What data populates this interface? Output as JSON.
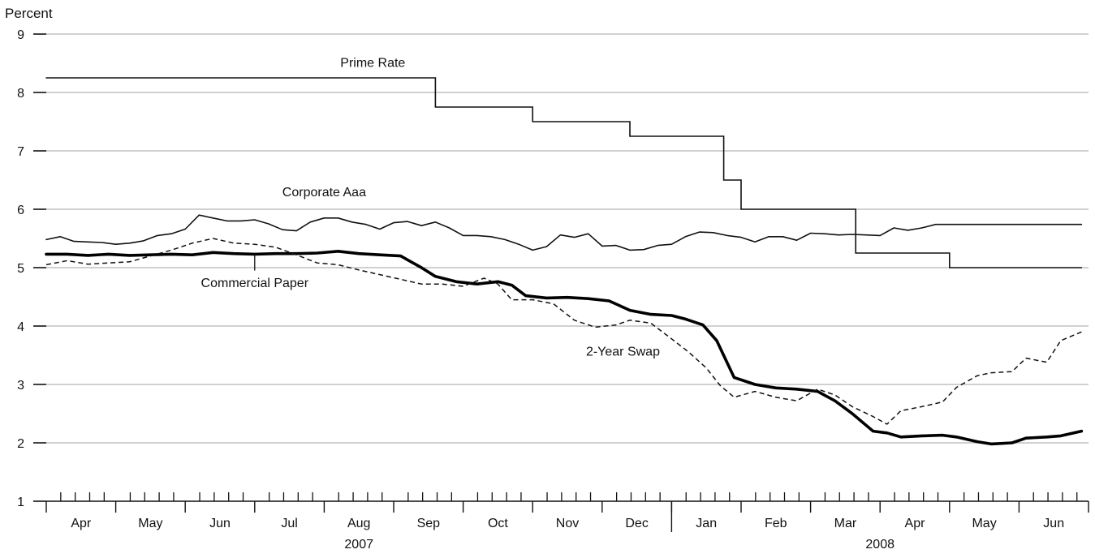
{
  "chart_data": {
    "type": "line",
    "ylabel": "Percent",
    "ylim": [
      1,
      9
    ],
    "yticks": [
      "1",
      "2",
      "3",
      "4",
      "5",
      "6",
      "7",
      "8",
      "9"
    ],
    "grid": "horizontal",
    "x_range": [
      0,
      15
    ],
    "months": [
      {
        "label": "Apr",
        "x": 0.5
      },
      {
        "label": "May",
        "x": 1.5
      },
      {
        "label": "Jun",
        "x": 2.5
      },
      {
        "label": "Jul",
        "x": 3.5
      },
      {
        "label": "Aug",
        "x": 4.5
      },
      {
        "label": "Sep",
        "x": 5.5
      },
      {
        "label": "Oct",
        "x": 6.5
      },
      {
        "label": "Nov",
        "x": 7.5
      },
      {
        "label": "Dec",
        "x": 8.5
      },
      {
        "label": "Jan",
        "x": 9.5
      },
      {
        "label": "Feb",
        "x": 10.5
      },
      {
        "label": "Mar",
        "x": 11.5
      },
      {
        "label": "Apr",
        "x": 12.5
      },
      {
        "label": "May",
        "x": 13.5
      },
      {
        "label": "Jun",
        "x": 14.5
      }
    ],
    "years": [
      {
        "label": "2007",
        "x": 4.5
      },
      {
        "label": "2008",
        "x": 12.0
      }
    ],
    "year_divider_x": 9.0,
    "series": [
      {
        "name": "Prime Rate",
        "style": "thin",
        "step": true,
        "color": "#111111",
        "points": [
          [
            0.0,
            8.25
          ],
          [
            5.6,
            8.25
          ],
          [
            5.6,
            7.75
          ],
          [
            7.0,
            7.75
          ],
          [
            7.0,
            7.5
          ],
          [
            8.4,
            7.5
          ],
          [
            8.4,
            7.25
          ],
          [
            9.75,
            7.25
          ],
          [
            9.75,
            6.5
          ],
          [
            10.0,
            6.5
          ],
          [
            10.0,
            6.0
          ],
          [
            11.65,
            6.0
          ],
          [
            11.65,
            5.25
          ],
          [
            13.0,
            5.25
          ],
          [
            13.0,
            5.0
          ],
          [
            14.9,
            5.0
          ]
        ]
      },
      {
        "name": "Corporate Aaa",
        "style": "thin",
        "color": "#111111",
        "points": [
          [
            0.0,
            5.48
          ],
          [
            0.2,
            5.53
          ],
          [
            0.4,
            5.45
          ],
          [
            0.6,
            5.44
          ],
          [
            0.8,
            5.43
          ],
          [
            1.0,
            5.4
          ],
          [
            1.2,
            5.42
          ],
          [
            1.4,
            5.46
          ],
          [
            1.6,
            5.55
          ],
          [
            1.8,
            5.58
          ],
          [
            2.0,
            5.66
          ],
          [
            2.2,
            5.9
          ],
          [
            2.4,
            5.85
          ],
          [
            2.6,
            5.8
          ],
          [
            2.8,
            5.8
          ],
          [
            3.0,
            5.82
          ],
          [
            3.2,
            5.75
          ],
          [
            3.4,
            5.65
          ],
          [
            3.6,
            5.63
          ],
          [
            3.8,
            5.78
          ],
          [
            4.0,
            5.85
          ],
          [
            4.2,
            5.85
          ],
          [
            4.4,
            5.78
          ],
          [
            4.6,
            5.74
          ],
          [
            4.8,
            5.66
          ],
          [
            5.0,
            5.77
          ],
          [
            5.2,
            5.79
          ],
          [
            5.4,
            5.72
          ],
          [
            5.6,
            5.78
          ],
          [
            5.8,
            5.68
          ],
          [
            6.0,
            5.55
          ],
          [
            6.2,
            5.55
          ],
          [
            6.4,
            5.53
          ],
          [
            6.6,
            5.48
          ],
          [
            6.8,
            5.4
          ],
          [
            7.0,
            5.3
          ],
          [
            7.2,
            5.36
          ],
          [
            7.4,
            5.56
          ],
          [
            7.6,
            5.52
          ],
          [
            7.8,
            5.58
          ],
          [
            8.0,
            5.37
          ],
          [
            8.2,
            5.38
          ],
          [
            8.4,
            5.3
          ],
          [
            8.6,
            5.31
          ],
          [
            8.8,
            5.38
          ],
          [
            9.0,
            5.4
          ],
          [
            9.2,
            5.53
          ],
          [
            9.4,
            5.61
          ],
          [
            9.6,
            5.6
          ],
          [
            9.8,
            5.55
          ],
          [
            10.0,
            5.52
          ],
          [
            10.2,
            5.44
          ],
          [
            10.4,
            5.53
          ],
          [
            10.6,
            5.53
          ],
          [
            10.8,
            5.47
          ],
          [
            11.0,
            5.59
          ],
          [
            11.2,
            5.58
          ],
          [
            11.4,
            5.56
          ],
          [
            11.6,
            5.57
          ],
          [
            11.8,
            5.56
          ],
          [
            12.0,
            5.55
          ],
          [
            12.2,
            5.68
          ],
          [
            12.4,
            5.64
          ],
          [
            12.6,
            5.68
          ],
          [
            12.8,
            5.74
          ],
          [
            14.9,
            5.74
          ]
        ]
      },
      {
        "name": "Commercial Paper",
        "style": "thick",
        "color": "#000000",
        "points": [
          [
            0.0,
            5.23
          ],
          [
            0.3,
            5.23
          ],
          [
            0.6,
            5.21
          ],
          [
            0.9,
            5.23
          ],
          [
            1.2,
            5.21
          ],
          [
            1.5,
            5.22
          ],
          [
            1.8,
            5.23
          ],
          [
            2.1,
            5.22
          ],
          [
            2.4,
            5.26
          ],
          [
            2.7,
            5.24
          ],
          [
            3.0,
            5.23
          ],
          [
            3.3,
            5.24
          ],
          [
            3.6,
            5.24
          ],
          [
            3.9,
            5.25
          ],
          [
            4.2,
            5.28
          ],
          [
            4.5,
            5.24
          ],
          [
            4.8,
            5.22
          ],
          [
            5.1,
            5.2
          ],
          [
            5.4,
            5.0
          ],
          [
            5.6,
            4.85
          ],
          [
            5.9,
            4.76
          ],
          [
            6.2,
            4.72
          ],
          [
            6.5,
            4.76
          ],
          [
            6.7,
            4.7
          ],
          [
            6.9,
            4.52
          ],
          [
            7.2,
            4.48
          ],
          [
            7.5,
            4.49
          ],
          [
            7.8,
            4.47
          ],
          [
            8.1,
            4.43
          ],
          [
            8.4,
            4.27
          ],
          [
            8.7,
            4.2
          ],
          [
            9.0,
            4.18
          ],
          [
            9.2,
            4.12
          ],
          [
            9.45,
            4.02
          ],
          [
            9.65,
            3.75
          ],
          [
            9.9,
            3.12
          ],
          [
            10.2,
            3.0
          ],
          [
            10.5,
            2.94
          ],
          [
            10.8,
            2.92
          ],
          [
            11.1,
            2.88
          ],
          [
            11.35,
            2.72
          ],
          [
            11.6,
            2.5
          ],
          [
            11.9,
            2.2
          ],
          [
            12.1,
            2.17
          ],
          [
            12.3,
            2.1
          ],
          [
            12.6,
            2.12
          ],
          [
            12.9,
            2.13
          ],
          [
            13.1,
            2.1
          ],
          [
            13.4,
            2.02
          ],
          [
            13.6,
            1.98
          ],
          [
            13.9,
            2.0
          ],
          [
            14.1,
            2.08
          ],
          [
            14.4,
            2.1
          ],
          [
            14.6,
            2.12
          ],
          [
            14.9,
            2.2
          ]
        ]
      },
      {
        "name": "2-Year Swap",
        "style": "dashed",
        "color": "#111111",
        "points": [
          [
            0.0,
            5.05
          ],
          [
            0.3,
            5.12
          ],
          [
            0.6,
            5.06
          ],
          [
            0.9,
            5.08
          ],
          [
            1.2,
            5.1
          ],
          [
            1.5,
            5.2
          ],
          [
            1.8,
            5.3
          ],
          [
            2.1,
            5.42
          ],
          [
            2.4,
            5.5
          ],
          [
            2.7,
            5.42
          ],
          [
            3.0,
            5.4
          ],
          [
            3.3,
            5.35
          ],
          [
            3.6,
            5.22
          ],
          [
            3.9,
            5.08
          ],
          [
            4.2,
            5.05
          ],
          [
            4.5,
            4.96
          ],
          [
            4.8,
            4.88
          ],
          [
            5.1,
            4.8
          ],
          [
            5.4,
            4.72
          ],
          [
            5.7,
            4.72
          ],
          [
            6.0,
            4.68
          ],
          [
            6.3,
            4.82
          ],
          [
            6.5,
            4.72
          ],
          [
            6.7,
            4.45
          ],
          [
            7.0,
            4.45
          ],
          [
            7.3,
            4.38
          ],
          [
            7.6,
            4.1
          ],
          [
            7.9,
            3.98
          ],
          [
            8.2,
            4.02
          ],
          [
            8.4,
            4.1
          ],
          [
            8.7,
            4.05
          ],
          [
            9.0,
            3.78
          ],
          [
            9.25,
            3.55
          ],
          [
            9.5,
            3.28
          ],
          [
            9.7,
            2.98
          ],
          [
            9.9,
            2.78
          ],
          [
            10.2,
            2.88
          ],
          [
            10.5,
            2.78
          ],
          [
            10.8,
            2.72
          ],
          [
            11.1,
            2.92
          ],
          [
            11.35,
            2.82
          ],
          [
            11.6,
            2.62
          ],
          [
            11.9,
            2.45
          ],
          [
            12.1,
            2.32
          ],
          [
            12.3,
            2.55
          ],
          [
            12.6,
            2.62
          ],
          [
            12.9,
            2.7
          ],
          [
            13.1,
            2.95
          ],
          [
            13.4,
            3.15
          ],
          [
            13.6,
            3.2
          ],
          [
            13.9,
            3.22
          ],
          [
            14.1,
            3.45
          ],
          [
            14.4,
            3.38
          ],
          [
            14.6,
            3.75
          ],
          [
            14.9,
            3.9
          ]
        ]
      }
    ],
    "annotations": [
      {
        "text": "Prime Rate",
        "x": 4.7,
        "y": 8.44
      },
      {
        "text": "Corporate Aaa",
        "x": 4.0,
        "y": 6.22
      },
      {
        "text": "Commercial Paper",
        "x": 3.0,
        "y": 4.67
      },
      {
        "text": "2-Year Swap",
        "x": 8.3,
        "y": 3.49
      }
    ]
  }
}
